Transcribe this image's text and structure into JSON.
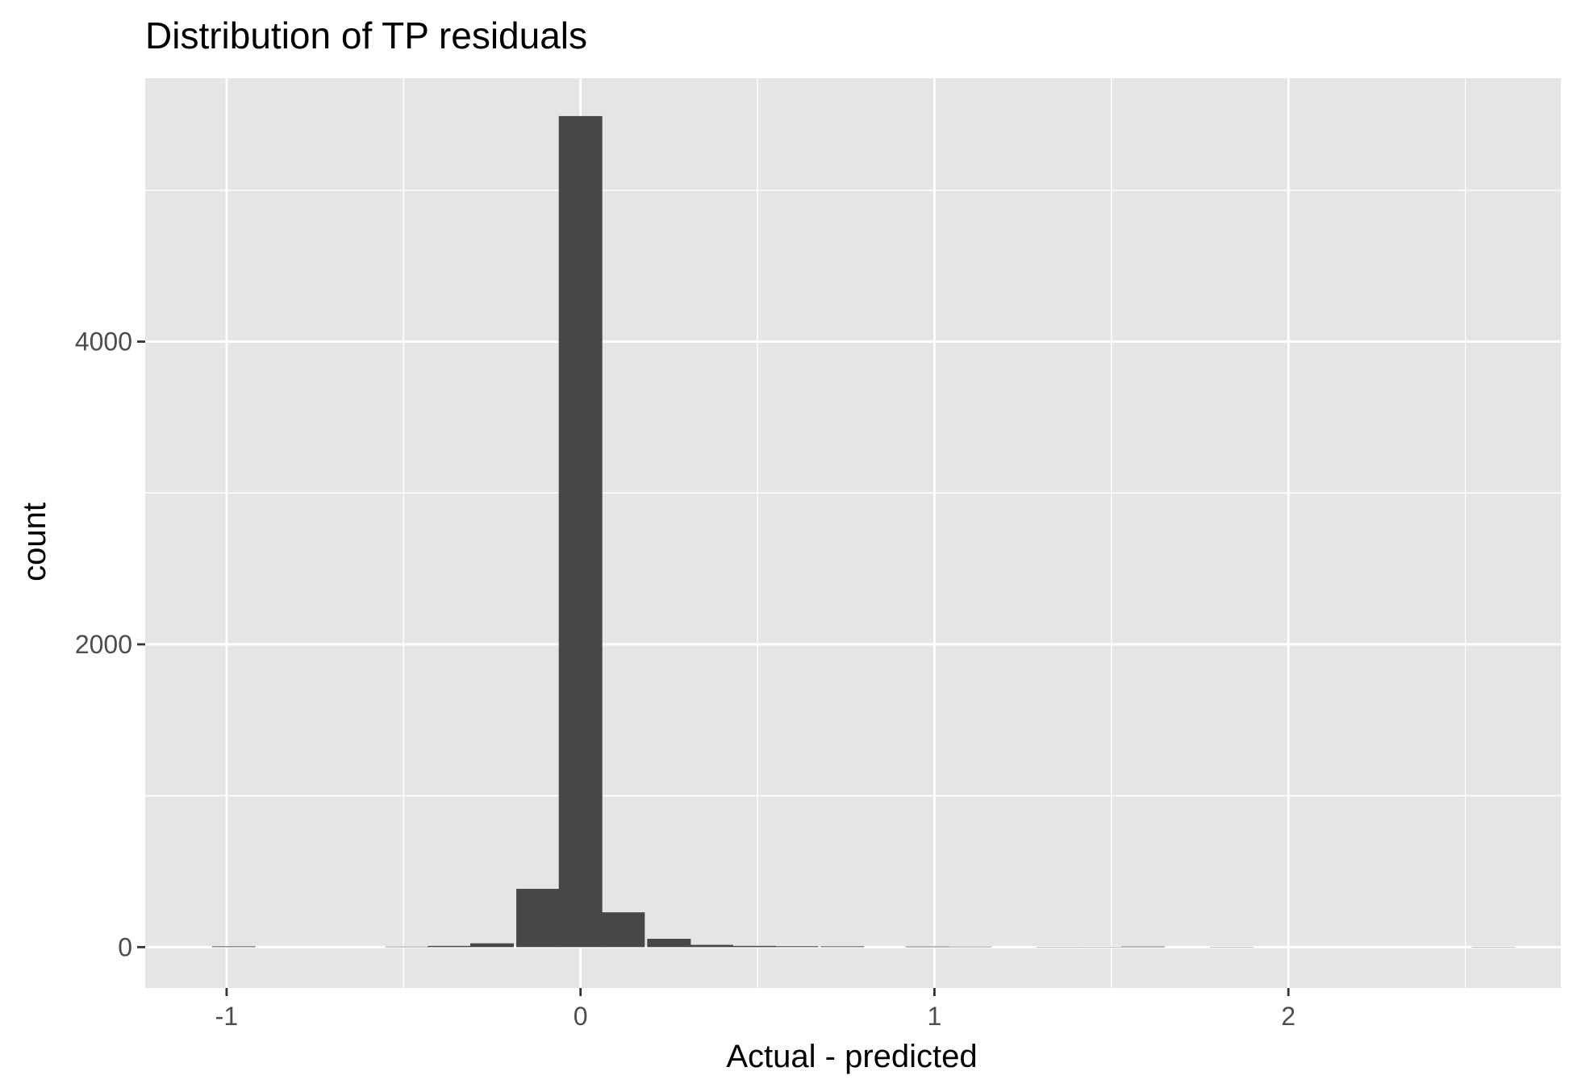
{
  "chart_data": {
    "type": "bar",
    "title": "Distribution of TP residuals",
    "xlabel": "Actual - predicted",
    "ylabel": "count",
    "xlim": [
      -1.23,
      2.77
    ],
    "ylim": [
      -270,
      5740
    ],
    "x_ticks": [
      -1,
      0,
      1,
      2
    ],
    "x_tick_labels": [
      "-1",
      "0",
      "1",
      "2"
    ],
    "y_ticks": [
      0,
      2000,
      4000
    ],
    "y_tick_labels": [
      "0",
      "2000",
      "4000"
    ],
    "grid": true,
    "bin_width": 0.123,
    "bins": [
      {
        "x": -0.98,
        "count": 5
      },
      {
        "x": -0.49,
        "count": 3
      },
      {
        "x": -0.37,
        "count": 8
      },
      {
        "x": -0.25,
        "count": 25
      },
      {
        "x": -0.12,
        "count": 385
      },
      {
        "x": 0.0,
        "count": 5490
      },
      {
        "x": 0.12,
        "count": 230
      },
      {
        "x": 0.25,
        "count": 55
      },
      {
        "x": 0.37,
        "count": 15
      },
      {
        "x": 0.49,
        "count": 8
      },
      {
        "x": 0.61,
        "count": 6
      },
      {
        "x": 0.74,
        "count": 5
      },
      {
        "x": 0.98,
        "count": 4
      },
      {
        "x": 1.1,
        "count": 3
      },
      {
        "x": 1.35,
        "count": 2
      },
      {
        "x": 1.47,
        "count": 2
      },
      {
        "x": 1.59,
        "count": 4
      },
      {
        "x": 1.84,
        "count": 2
      },
      {
        "x": 2.58,
        "count": 2
      }
    ],
    "colors": {
      "bar": "#474747",
      "panel": "#e5e5e5",
      "grid": "#ffffff",
      "tick_text": "#4d4d4d",
      "tick_mark": "#333333"
    }
  }
}
